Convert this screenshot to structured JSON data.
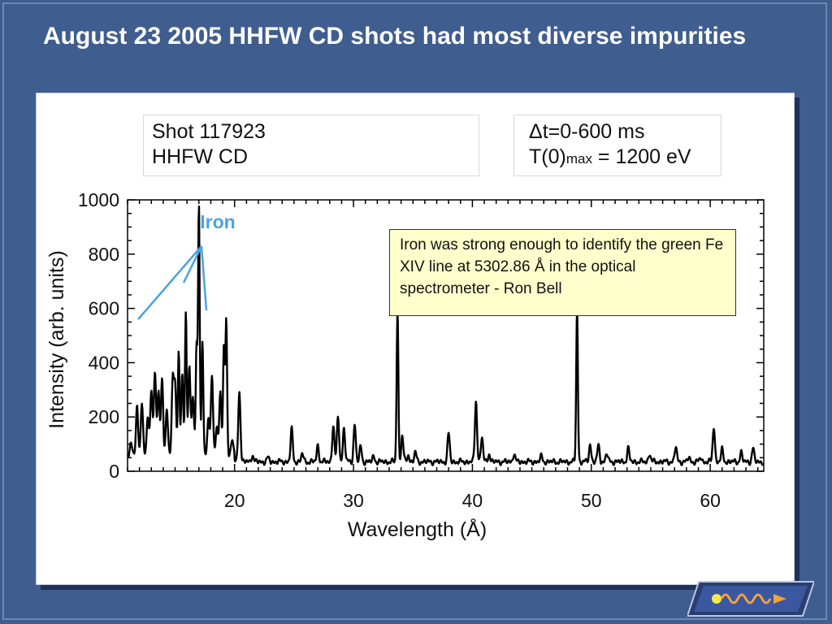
{
  "slide": {
    "title": "August 23 2005 HHFW CD shots had most diverse impurities",
    "colors": {
      "background": "#3f5d8f",
      "title": "#ffffff",
      "annotation": "#4aa3df",
      "note_bg": "#ffffcc"
    }
  },
  "shot_box": {
    "line1": "Shot 117923",
    "line2": "HHFW CD"
  },
  "params_box": {
    "dt_symbol": "Δ",
    "dt_text": "t=0-600 ms",
    "t_prefix": "T(0)",
    "t_sub": "max",
    "t_value": " = 1200 eV"
  },
  "note": "Iron was strong enough to identify the green Fe XIV line at 5302.86 Å in the optical spectrometer - Ron Bell",
  "chart_data": {
    "type": "line",
    "title": "",
    "xlabel": "Wavelength (Å)",
    "ylabel": "Intensity (arb. units)",
    "xlim": [
      11,
      64.5
    ],
    "ylim": [
      0,
      1000
    ],
    "x_ticks": [
      20,
      30,
      40,
      50,
      60
    ],
    "y_ticks": [
      0,
      200,
      400,
      600,
      800,
      1000
    ],
    "grid": false,
    "baseline": 35,
    "peaks": [
      {
        "x": 11.3,
        "y": 75
      },
      {
        "x": 11.8,
        "y": 215
      },
      {
        "x": 12.2,
        "y": 225
      },
      {
        "x": 12.7,
        "y": 180
      },
      {
        "x": 13.0,
        "y": 280
      },
      {
        "x": 13.3,
        "y": 335
      },
      {
        "x": 13.6,
        "y": 275
      },
      {
        "x": 13.9,
        "y": 315
      },
      {
        "x": 14.3,
        "y": 200
      },
      {
        "x": 14.8,
        "y": 315
      },
      {
        "x": 15.0,
        "y": 280
      },
      {
        "x": 15.3,
        "y": 410
      },
      {
        "x": 15.6,
        "y": 335
      },
      {
        "x": 15.9,
        "y": 560
      },
      {
        "x": 16.2,
        "y": 365
      },
      {
        "x": 16.5,
        "y": 250
      },
      {
        "x": 16.8,
        "y": 445
      },
      {
        "x": 17.0,
        "y": 950
      },
      {
        "x": 17.3,
        "y": 460
      },
      {
        "x": 17.8,
        "y": 175
      },
      {
        "x": 18.1,
        "y": 320
      },
      {
        "x": 18.5,
        "y": 140
      },
      {
        "x": 18.8,
        "y": 270
      },
      {
        "x": 19.1,
        "y": 425
      },
      {
        "x": 19.3,
        "y": 540
      },
      {
        "x": 19.8,
        "y": 95
      },
      {
        "x": 20.4,
        "y": 300
      },
      {
        "x": 21.5,
        "y": 60
      },
      {
        "x": 22.8,
        "y": 50
      },
      {
        "x": 24.8,
        "y": 155
      },
      {
        "x": 25.7,
        "y": 65
      },
      {
        "x": 27.0,
        "y": 95
      },
      {
        "x": 28.3,
        "y": 170
      },
      {
        "x": 28.7,
        "y": 200
      },
      {
        "x": 29.2,
        "y": 160
      },
      {
        "x": 30.1,
        "y": 175
      },
      {
        "x": 30.6,
        "y": 90
      },
      {
        "x": 31.7,
        "y": 55
      },
      {
        "x": 33.7,
        "y": 600
      },
      {
        "x": 34.1,
        "y": 130
      },
      {
        "x": 34.6,
        "y": 60
      },
      {
        "x": 35.2,
        "y": 70
      },
      {
        "x": 38.0,
        "y": 140
      },
      {
        "x": 40.3,
        "y": 260
      },
      {
        "x": 40.8,
        "y": 125
      },
      {
        "x": 41.4,
        "y": 65
      },
      {
        "x": 43.5,
        "y": 65
      },
      {
        "x": 45.8,
        "y": 55
      },
      {
        "x": 48.8,
        "y": 600
      },
      {
        "x": 49.9,
        "y": 100
      },
      {
        "x": 50.6,
        "y": 95
      },
      {
        "x": 51.3,
        "y": 65
      },
      {
        "x": 53.1,
        "y": 85
      },
      {
        "x": 54.9,
        "y": 65
      },
      {
        "x": 57.1,
        "y": 90
      },
      {
        "x": 58.2,
        "y": 50
      },
      {
        "x": 59.2,
        "y": 50
      },
      {
        "x": 60.3,
        "y": 165
      },
      {
        "x": 61.0,
        "y": 80
      },
      {
        "x": 62.6,
        "y": 70
      },
      {
        "x": 63.6,
        "y": 85
      }
    ],
    "annotations": [
      {
        "text": "Iron",
        "x": 17.1,
        "y": 895
      }
    ]
  }
}
